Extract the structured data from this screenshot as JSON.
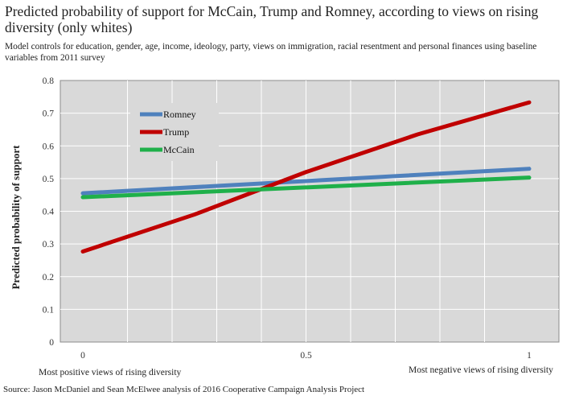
{
  "colors": {
    "plot_bg": "#d9d9d9",
    "grid": "#ffffff",
    "romney": "#4f81bd",
    "trump": "#c00000",
    "mccain": "#1fb04a"
  },
  "chart_data": {
    "type": "line",
    "title": "Predicted probability of support  for McCain, Trump and Romney, according to views on rising diversity (only whites)",
    "subtitle": "Model controls for education, gender, age, income, ideology, party, views on immigration, racial resentment and personal finances using baseline variables from 2011 survey",
    "ylabel": "Predicted probability of support",
    "x_note_left": "Most positive views of rising diversity",
    "x_note_right": "Most negative views of rising diversity",
    "source": "Source: Jason McDaniel and Sean McElwee analysis of 2016 Cooperative Campaign Analysis Project",
    "xlim": [
      0,
      1
    ],
    "ylim": [
      0,
      0.8
    ],
    "x_ticks": [
      0,
      0.5,
      1
    ],
    "x_tick_labels": [
      "0",
      "0.5",
      "1"
    ],
    "y_ticks": [
      0,
      0.1,
      0.2,
      0.3,
      0.4,
      0.5,
      0.6,
      0.7,
      0.8
    ],
    "y_tick_labels": [
      "0",
      "0.1",
      "0.2",
      "0.3",
      "0.4",
      "0.5",
      "0.6",
      "0.7",
      "0.8"
    ],
    "grid": true,
    "legend_position": "upper-left",
    "series": [
      {
        "name": "Romney",
        "color": "#4f81bd",
        "x": [
          0,
          1
        ],
        "y": [
          0.455,
          0.53
        ]
      },
      {
        "name": "Trump",
        "color": "#c00000",
        "x": [
          0,
          0.25,
          0.5,
          0.75,
          1
        ],
        "y": [
          0.277,
          0.39,
          0.52,
          0.635,
          0.733
        ]
      },
      {
        "name": "McCain",
        "color": "#1fb04a",
        "x": [
          0,
          1
        ],
        "y": [
          0.443,
          0.503
        ]
      }
    ]
  }
}
